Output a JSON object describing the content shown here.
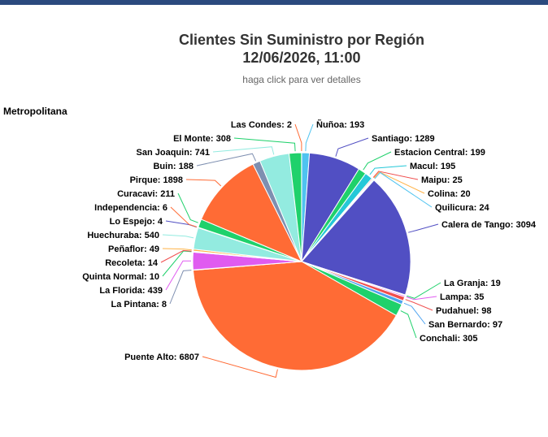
{
  "header": {
    "title_line1": "Clientes Sin Suministro por Región",
    "title_line2": "12/06/2026, 11:00",
    "subtitle": "haga click para ver detalles"
  },
  "colors": {
    "top_bar": "#2b4a7e",
    "slice_palette": [
      "#514fc3",
      "#ff6b35",
      "#1fd16b",
      "#93ebe0",
      "#e05bf0",
      "#7e8fb0",
      "#f04e4e",
      "#4ec3f0",
      "#ffb347"
    ]
  },
  "chart_data": {
    "type": "pie",
    "title": "Clientes Sin Suministro por Región",
    "subtitle": "12/06/2026, 11:00",
    "region": "Metropolitana",
    "slices": [
      {
        "label": "Ñuñoa",
        "value": 193,
        "color": "#4ec3f0"
      },
      {
        "label": "Santiago",
        "value": 1289,
        "color": "#514fc3"
      },
      {
        "label": "Estacion Central",
        "value": 199,
        "color": "#1fd16b"
      },
      {
        "label": "Macul",
        "value": 195,
        "color": "#25c8d8"
      },
      {
        "label": "Maipu",
        "value": 25,
        "color": "#f04e4e"
      },
      {
        "label": "Colina",
        "value": 20,
        "color": "#ffb347"
      },
      {
        "label": "Quilicura",
        "value": 24,
        "color": "#4ec3f0"
      },
      {
        "label": "Calera de Tango",
        "value": 3094,
        "color": "#514fc3"
      },
      {
        "label": "La Granja",
        "value": 19,
        "color": "#1fd16b"
      },
      {
        "label": "Lampa",
        "value": 35,
        "color": "#e05bf0"
      },
      {
        "label": "Pudahuel",
        "value": 98,
        "color": "#f04e4e"
      },
      {
        "label": "San Bernardo",
        "value": 97,
        "color": "#4ea3f0"
      },
      {
        "label": "Conchali",
        "value": 305,
        "color": "#1fd16b"
      },
      {
        "label": "Puente Alto",
        "value": 6807,
        "color": "#ff6b35"
      },
      {
        "label": "La Pintana",
        "value": 8,
        "color": "#7e8fb0"
      },
      {
        "label": "La Florida",
        "value": 439,
        "color": "#e05bf0"
      },
      {
        "label": "Quinta Normal",
        "value": 10,
        "color": "#1fd16b"
      },
      {
        "label": "Recoleta",
        "value": 14,
        "color": "#f04e4e"
      },
      {
        "label": "Peñaflor",
        "value": 49,
        "color": "#ffb347"
      },
      {
        "label": "Huechuraba",
        "value": 540,
        "color": "#93ebe0"
      },
      {
        "label": "Lo Espejo",
        "value": 4,
        "color": "#514fc3"
      },
      {
        "label": "Independencia",
        "value": 6,
        "color": "#ff6b35"
      },
      {
        "label": "Curacavi",
        "value": 211,
        "color": "#1fd16b"
      },
      {
        "label": "Pirque",
        "value": 1898,
        "color": "#ff6b35"
      },
      {
        "label": "Buin",
        "value": 188,
        "color": "#7e8fb0"
      },
      {
        "label": "San Joaquin",
        "value": 741,
        "color": "#93ebe0"
      },
      {
        "label": "El Monte",
        "value": 308,
        "color": "#1fd16b"
      },
      {
        "label": "Las Condes",
        "value": 2,
        "color": "#ff6b35"
      }
    ]
  }
}
